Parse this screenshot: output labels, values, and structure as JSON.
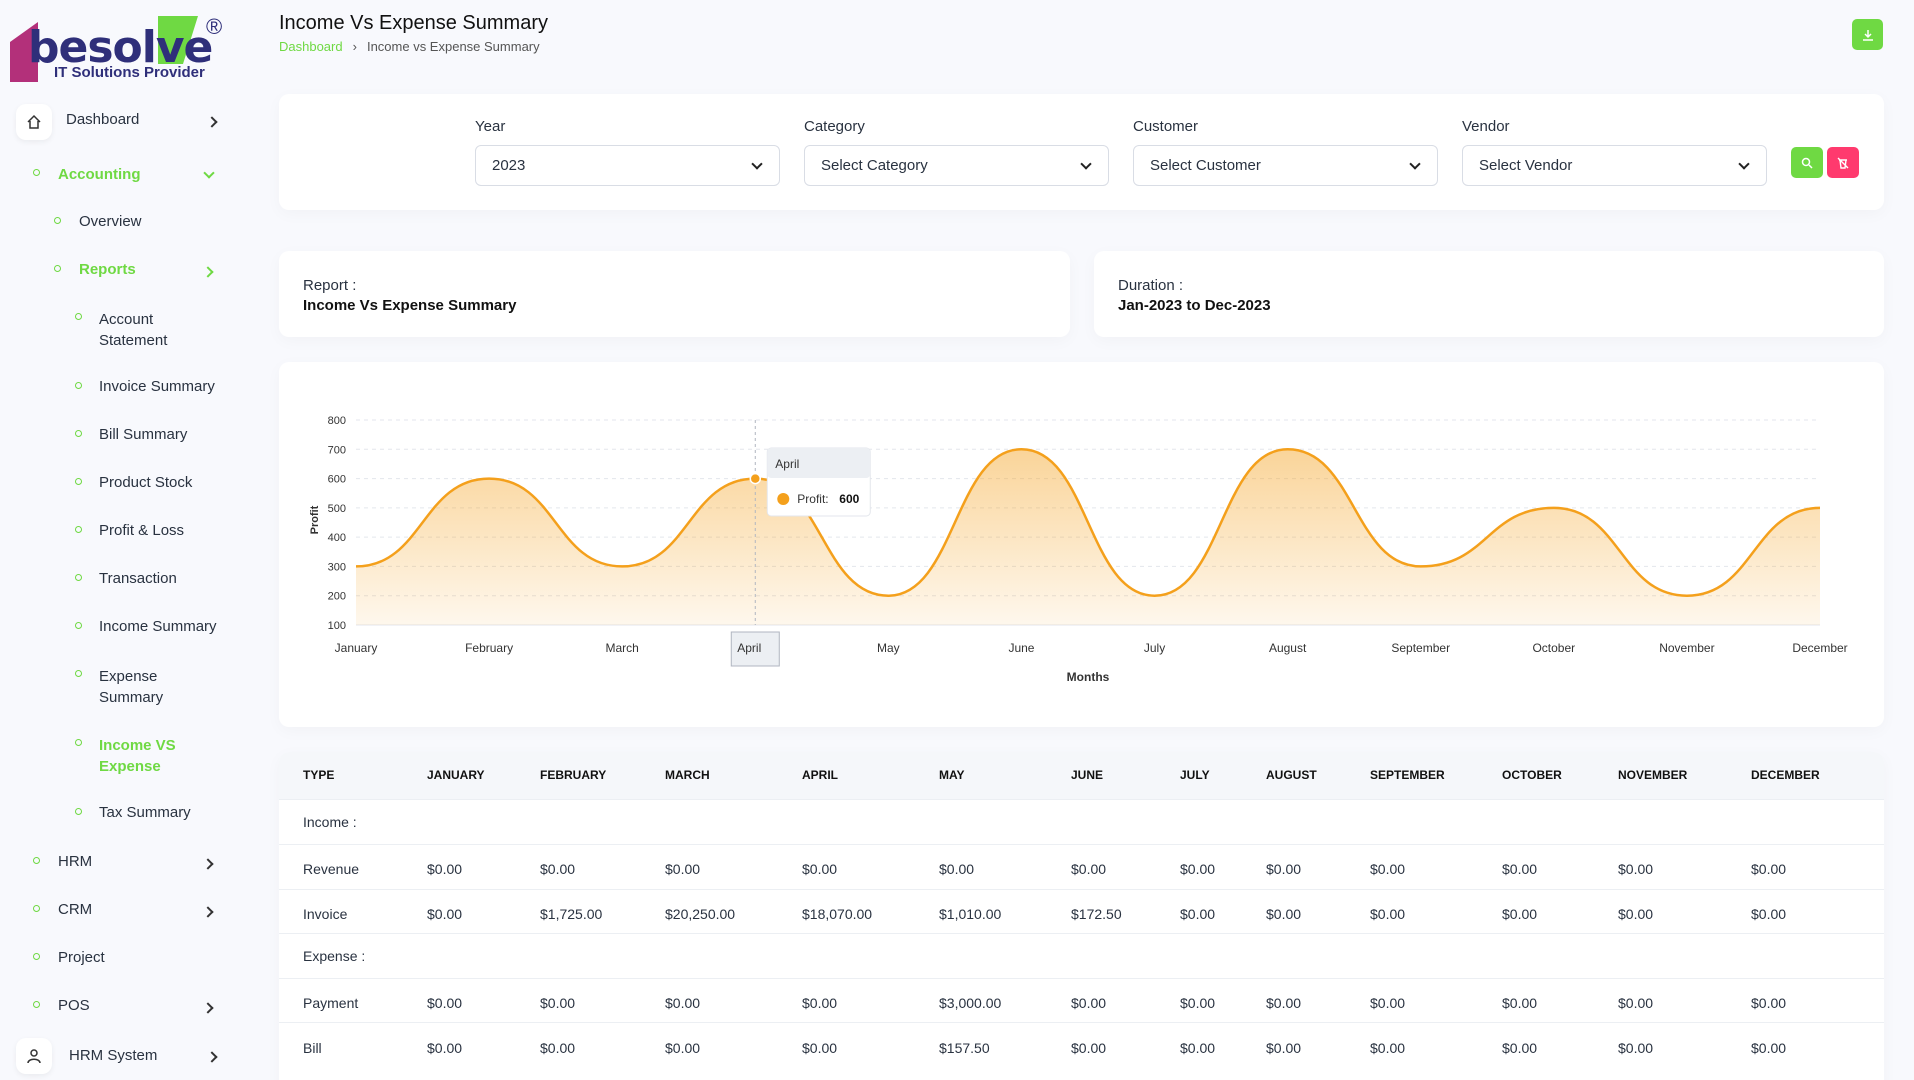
{
  "logo": {
    "word": "besolve",
    "sub": "IT Solutions Provider",
    "reg": "®"
  },
  "sidebar": {
    "dashboard": "Dashboard",
    "accounting": "Accounting",
    "overview": "Overview",
    "reports": "Reports",
    "report_items": [
      "Account Statement",
      "Invoice Summary",
      "Bill Summary",
      "Product Stock",
      "Profit & Loss",
      "Transaction",
      "Income Summary",
      "Expense Summary",
      "Income VS Expense",
      "Tax Summary"
    ],
    "hrm": "HRM",
    "crm": "CRM",
    "project": "Project",
    "pos": "POS",
    "hrm_system": "HRM System"
  },
  "header": {
    "title": "Income Vs Expense Summary",
    "breadcrumb_home": "Dashboard",
    "breadcrumb_sep": "›",
    "breadcrumb_current": "Income vs Expense Summary"
  },
  "filters": {
    "year_label": "Year",
    "year_value": "2023",
    "category_label": "Category",
    "category_value": "Select Category",
    "customer_label": "Customer",
    "customer_value": "Select Customer",
    "vendor_label": "Vendor",
    "vendor_value": "Select Vendor"
  },
  "info": {
    "report_label": "Report :",
    "report_value": "Income Vs Expense Summary",
    "duration_label": "Duration :",
    "duration_value": "Jan-2023 to Dec-2023"
  },
  "chart_data": {
    "type": "area",
    "x": [
      "January",
      "February",
      "March",
      "April",
      "May",
      "June",
      "July",
      "August",
      "September",
      "October",
      "November",
      "December"
    ],
    "series": [
      {
        "name": "Profit",
        "values": [
          300,
          600,
          300,
          600,
          200,
          700,
          200,
          700,
          300,
          500,
          200,
          500
        ]
      }
    ],
    "xlabel": "Months",
    "ylabel": "Profit",
    "ylim": [
      100,
      800
    ],
    "yticks": [
      100,
      200,
      300,
      400,
      500,
      600,
      700,
      800
    ],
    "grid": true,
    "color": "#f4a01c",
    "tooltip": {
      "month": "April",
      "series": "Profit:",
      "value": "600"
    }
  },
  "table": {
    "headers": [
      "TYPE",
      "JANUARY",
      "FEBRUARY",
      "MARCH",
      "APRIL",
      "MAY",
      "JUNE",
      "JULY",
      "AUGUST",
      "SEPTEMBER",
      "OCTOBER",
      "NOVEMBER",
      "DECEMBER"
    ],
    "rows": [
      {
        "kind": "section",
        "label": "Income :"
      },
      {
        "kind": "data",
        "cells": [
          "Revenue",
          "$0.00",
          "$0.00",
          "$0.00",
          "$0.00",
          "$0.00",
          "$0.00",
          "$0.00",
          "$0.00",
          "$0.00",
          "$0.00",
          "$0.00",
          "$0.00"
        ]
      },
      {
        "kind": "data",
        "cells": [
          "Invoice",
          "$0.00",
          "$1,725.00",
          "$20,250.00",
          "$18,070.00",
          "$1,010.00",
          "$172.50",
          "$0.00",
          "$0.00",
          "$0.00",
          "$0.00",
          "$0.00",
          "$0.00"
        ]
      },
      {
        "kind": "section",
        "label": "Expense :"
      },
      {
        "kind": "data",
        "cells": [
          "Payment",
          "$0.00",
          "$0.00",
          "$0.00",
          "$0.00",
          "$3,000.00",
          "$0.00",
          "$0.00",
          "$0.00",
          "$0.00",
          "$0.00",
          "$0.00",
          "$0.00"
        ]
      },
      {
        "kind": "data",
        "cells": [
          "Bill",
          "$0.00",
          "$0.00",
          "$0.00",
          "$0.00",
          "$157.50",
          "$0.00",
          "$0.00",
          "$0.00",
          "$0.00",
          "$0.00",
          "$0.00",
          "$0.00"
        ]
      }
    ]
  }
}
